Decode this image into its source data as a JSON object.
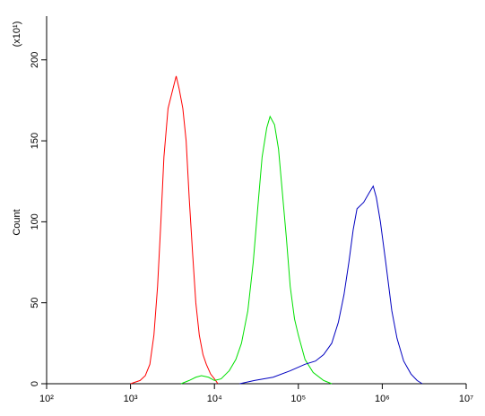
{
  "chart_data": {
    "type": "line",
    "x_label": "",
    "y_label": "Count",
    "y_scale_note": "(x10¹)",
    "xscale": "log",
    "xlim": [
      100,
      10000000
    ],
    "xticks": [
      {
        "value": 100,
        "label": "10²"
      },
      {
        "value": 1000,
        "label": "10³"
      },
      {
        "value": 10000,
        "label": "10⁴"
      },
      {
        "value": 100000,
        "label": "10⁵"
      },
      {
        "value": 1000000,
        "label": "10⁶"
      },
      {
        "value": 10000000,
        "label": "10⁷"
      }
    ],
    "ylim": [
      0,
      227
    ],
    "yticks": [
      0,
      50,
      100,
      150,
      200
    ],
    "series": [
      {
        "color": "#ff0000",
        "x": [
          1000,
          1300,
          1500,
          1700,
          1900,
          2100,
          2300,
          2500,
          2800,
          3200,
          3500,
          3800,
          4200,
          4600,
          5000,
          5500,
          6000,
          6600,
          7300,
          8000,
          9000,
          10000,
          11000
        ],
        "values": [
          0,
          2,
          5,
          12,
          30,
          60,
          100,
          140,
          170,
          182,
          190,
          182,
          170,
          150,
          115,
          80,
          50,
          30,
          18,
          12,
          6,
          3,
          0
        ]
      },
      {
        "color": "#00e000",
        "x": [
          4000,
          5000,
          6000,
          7000,
          8500,
          10000,
          12000,
          15000,
          18000,
          21000,
          25000,
          29000,
          33000,
          37000,
          42000,
          46000,
          52000,
          58000,
          64000,
          72000,
          80000,
          90000,
          100000,
          120000,
          150000,
          200000,
          250000
        ],
        "values": [
          0,
          2,
          4,
          5,
          4,
          2,
          3,
          8,
          15,
          25,
          45,
          75,
          110,
          140,
          158,
          165,
          160,
          145,
          120,
          90,
          60,
          40,
          30,
          15,
          7,
          2,
          0
        ]
      },
      {
        "color": "#0000c0",
        "x": [
          20000,
          30000,
          50000,
          80000,
          120000,
          160000,
          200000,
          250000,
          300000,
          350000,
          400000,
          450000,
          500000,
          600000,
          700000,
          780000,
          850000,
          950000,
          1100000,
          1300000,
          1500000,
          1800000,
          2200000,
          2600000,
          3000000
        ],
        "values": [
          0,
          2,
          4,
          8,
          12,
          14,
          18,
          25,
          38,
          55,
          75,
          95,
          108,
          112,
          118,
          122,
          115,
          100,
          75,
          45,
          28,
          14,
          6,
          2,
          0
        ]
      }
    ]
  }
}
